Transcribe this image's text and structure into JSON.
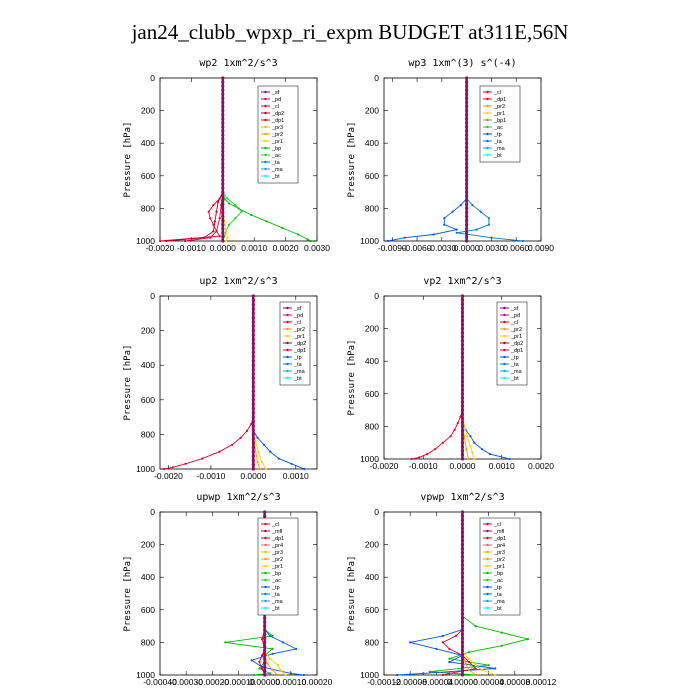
{
  "figure": {
    "title": "jan24_clubb_wpxp_ri_expm  BUDGET at311E,56N"
  },
  "colors": {
    "_sf": "#8b008b",
    "_pd": "#d0007a",
    "_cl": "#e8002a",
    "_dp1": "#e8002a",
    "_dp2": "#b8002a",
    "_dp4": "#d04050",
    "_mfl": "#a0007a",
    "_pr1": "#ffd000",
    "_pr2": "#ff9900",
    "_pr3": "#e8c000",
    "_pr4": "#ff6060",
    "_bp": "#00bb00",
    "_ac": "#22cc22",
    "_tp": "#0055ff",
    "_ta": "#0077cc",
    "_ma": "#00aaff",
    "_bt": "#00ffff"
  },
  "chart_data": [
    {
      "type": "line",
      "title": "wp2   1xm^2/s^3",
      "ylabel": "Pressure [hPa]",
      "xlim": [
        -0.002,
        0.003
      ],
      "ylim": [
        1000,
        0
      ],
      "xticks": [
        "-0.0020",
        "-0.0010",
        "0.0000",
        "0.0010",
        "0.0020",
        "0.0030"
      ],
      "xtick_values": [
        -0.002,
        -0.001,
        0,
        0.001,
        0.002,
        0.003
      ],
      "yticks": [
        "0",
        "200",
        "400",
        "600",
        "800",
        "1000"
      ],
      "legend": [
        "_sf",
        "_pd",
        "_cl",
        "_dp2",
        "_dp1",
        "_pr3",
        "_pr2",
        "_pr1",
        "_bp",
        "_ac",
        "_ta",
        "_ma",
        "_bt"
      ],
      "series": [
        {
          "name": "_bp",
          "p": [
            700,
            740,
            770,
            800,
            840,
            880,
            920,
            960,
            990,
            1000
          ],
          "v": [
            0,
            5e-05,
            0.0002,
            0.0005,
            0.0009,
            0.0014,
            0.0019,
            0.0024,
            0.0027,
            0.0028
          ]
        },
        {
          "name": "_ac",
          "p": [
            700,
            740,
            780,
            820,
            860,
            900,
            940,
            970,
            1000
          ],
          "v": [
            0,
            0.00015,
            0.0004,
            0.0006,
            0.0004,
            0.0002,
            0.0001,
            5e-05,
            0
          ]
        },
        {
          "name": "_dp1",
          "p": [
            700,
            740,
            780,
            820,
            860,
            900,
            940,
            970,
            1000
          ],
          "v": [
            0,
            -0.0001,
            -0.0003,
            -0.00045,
            -0.0004,
            -0.0003,
            -0.0002,
            -0.0001,
            -0.002
          ]
        },
        {
          "name": "_dp2",
          "p": [
            700,
            760,
            820,
            880,
            940,
            980,
            1000
          ],
          "v": [
            0,
            -0.00015,
            -0.0002,
            -0.00025,
            -0.0003,
            -0.0006,
            -0.0018
          ]
        },
        {
          "name": "_cl",
          "p": [
            700,
            780,
            860,
            940,
            980,
            1000
          ],
          "v": [
            0,
            -5e-05,
            -0.0001,
            -0.0002,
            -0.0004,
            -0.0012
          ]
        },
        {
          "name": "_pr1",
          "p": [
            800,
            880,
            940,
            980,
            1000
          ],
          "v": [
            0,
            5e-05,
            0.0001,
            0.00015,
            0.0001
          ]
        },
        {
          "name": "_pd",
          "p": [
            0,
            1000
          ],
          "v": [
            0,
            0
          ]
        },
        {
          "name": "_sf",
          "p": [
            0,
            1000
          ],
          "v": [
            0,
            0
          ]
        }
      ]
    },
    {
      "type": "line",
      "title": "wp3   1xm^(3) s^(-4)",
      "ylabel": "Pressure [hPa]",
      "xlim": [
        -0.01,
        0.009
      ],
      "ylim": [
        1000,
        0
      ],
      "xticks": [
        "-0.0090",
        "-0.0060",
        "-0.0030",
        "0.0000",
        "0.0030",
        "0.0060",
        "0.0090"
      ],
      "xtick_values": [
        -0.009,
        -0.006,
        -0.003,
        0,
        0.003,
        0.006,
        0.009
      ],
      "yticks": [
        "0",
        "200",
        "400",
        "600",
        "800",
        "1000"
      ],
      "legend": [
        "_cl",
        "_dp1",
        "_pr2",
        "_pr1",
        "_bp1",
        "_ac",
        "_tp",
        "_ta",
        "_ma",
        "_bt"
      ],
      "series": [
        {
          "name": "_tp",
          "p": [
            740,
            780,
            820,
            860,
            900,
            930,
            960,
            980,
            1000
          ],
          "v": [
            0,
            -0.0007,
            -0.0017,
            -0.0027,
            -0.0027,
            -0.0012,
            -0.004,
            -0.0075,
            -0.0095
          ]
        },
        {
          "name": "_ta",
          "p": [
            740,
            780,
            820,
            860,
            900,
            930,
            950,
            980,
            1000
          ],
          "v": [
            0,
            0.0007,
            0.0017,
            0.0027,
            0.0027,
            0.0012,
            -0.0012,
            0.003,
            0.0068
          ]
        },
        {
          "name": "_cl",
          "p": [
            0,
            1000
          ],
          "v": [
            0,
            0
          ]
        },
        {
          "name": "_dp1",
          "p": [
            0,
            1000
          ],
          "v": [
            0,
            0
          ]
        },
        {
          "name": "_pr1",
          "p": [
            0,
            1000
          ],
          "v": [
            0,
            0
          ]
        }
      ]
    },
    {
      "type": "line",
      "title": "up2   1xm^2/s^3",
      "ylabel": "Pressure [hPa]",
      "xlim": [
        -0.0022,
        0.0015
      ],
      "ylim": [
        1000,
        0
      ],
      "xticks": [
        "-0.0020",
        "-0.0010",
        "0.0000",
        "0.0010"
      ],
      "xtick_values": [
        -0.002,
        -0.001,
        0,
        0.001
      ],
      "yticks": [
        "0",
        "200",
        "400",
        "600",
        "800",
        "1000"
      ],
      "legend": [
        "_sf",
        "_pd",
        "_cl",
        "_pr2",
        "_pr1",
        "_dp2",
        "_dp1",
        "_tp",
        "_ta",
        "_ma",
        "_bt"
      ],
      "series": [
        {
          "name": "_dp1",
          "p": [
            700,
            740,
            780,
            820,
            860,
            900,
            940,
            970,
            990,
            1000
          ],
          "v": [
            0,
            -5e-05,
            -0.00015,
            -0.0003,
            -0.0005,
            -0.0008,
            -0.0012,
            -0.0016,
            -0.0019,
            -0.0021
          ]
        },
        {
          "name": "_tp",
          "p": [
            780,
            820,
            860,
            900,
            940,
            970,
            1000
          ],
          "v": [
            0,
            0.0001,
            0.00025,
            0.0004,
            0.0006,
            0.0009,
            0.0012
          ]
        },
        {
          "name": "_pr1",
          "p": [
            780,
            840,
            900,
            960,
            1000
          ],
          "v": [
            0,
            5e-05,
            0.00012,
            0.0002,
            0.0003
          ]
        },
        {
          "name": "_pr2",
          "p": [
            800,
            880,
            960,
            1000
          ],
          "v": [
            0,
            4e-05,
            0.0001,
            0.00015
          ]
        },
        {
          "name": "_cl",
          "p": [
            0,
            1000
          ],
          "v": [
            0,
            0
          ]
        },
        {
          "name": "_pd",
          "p": [
            0,
            1000
          ],
          "v": [
            0,
            0
          ]
        },
        {
          "name": "_sf",
          "p": [
            0,
            1000
          ],
          "v": [
            0,
            0
          ]
        }
      ]
    },
    {
      "type": "line",
      "title": "vp2   1xm^2/s^3",
      "ylabel": "Pressure [hPa]",
      "xlim": [
        -0.002,
        0.002
      ],
      "ylim": [
        1000,
        0
      ],
      "xticks": [
        "-0.0020",
        "-0.0010",
        "0.0000",
        "0.0010",
        "0.0020"
      ],
      "xtick_values": [
        -0.002,
        -0.001,
        0,
        0.001,
        0.002
      ],
      "yticks": [
        "0",
        "200",
        "400",
        "600",
        "800",
        "1000"
      ],
      "legend": [
        "_sf",
        "_pd",
        "_cl",
        "_pr2",
        "_pr1",
        "_dp2",
        "_dp1",
        "_tp",
        "_ta",
        "_ma",
        "_bt"
      ],
      "series": [
        {
          "name": "_dp1",
          "p": [
            700,
            740,
            780,
            820,
            860,
            900,
            940,
            970,
            990,
            1000
          ],
          "v": [
            0,
            -5e-05,
            -0.00012,
            -0.0002,
            -0.0003,
            -0.0005,
            -0.0007,
            -0.0009,
            -0.0011,
            -0.0013
          ]
        },
        {
          "name": "_tp",
          "p": [
            780,
            820,
            860,
            900,
            940,
            970,
            1000
          ],
          "v": [
            0,
            8e-05,
            0.0002,
            0.0003,
            0.0005,
            0.0007,
            0.0012
          ]
        },
        {
          "name": "_pr1",
          "p": [
            740,
            800,
            860,
            920,
            960,
            1000
          ],
          "v": [
            0,
            5e-05,
            0.00012,
            0.0002,
            0.00025,
            0.0003
          ]
        },
        {
          "name": "_pr2",
          "p": [
            780,
            860,
            940,
            1000
          ],
          "v": [
            0,
            4e-05,
            0.0001,
            0.00015
          ]
        },
        {
          "name": "_cl",
          "p": [
            0,
            1000
          ],
          "v": [
            0,
            0
          ]
        },
        {
          "name": "_pd",
          "p": [
            0,
            1000
          ],
          "v": [
            0,
            0
          ]
        },
        {
          "name": "_sf",
          "p": [
            0,
            1000
          ],
          "v": [
            0,
            0
          ]
        }
      ]
    },
    {
      "type": "line",
      "title": "upwp   1xm^2/s^3",
      "ylabel": "Pressure [hPa]",
      "xlim": [
        -0.0004,
        0.0002
      ],
      "ylim": [
        1000,
        0
      ],
      "xticks": [
        "-0.00040",
        "-0.00030",
        "-0.00020",
        "-0.00010",
        "0.00000",
        "0.00010",
        "0.00020"
      ],
      "xtick_values": [
        -0.0004,
        -0.0003,
        -0.0002,
        -0.0001,
        0,
        0.0001,
        0.0002
      ],
      "yticks": [
        "0",
        "200",
        "400",
        "600",
        "800",
        "1000"
      ],
      "legend": [
        "_cl",
        "_mfl",
        "_dp1",
        "_pr4",
        "_pr3",
        "_pr2",
        "_pr1",
        "_bp",
        "_ac",
        "_tp",
        "_ta",
        "_ma",
        "_bt"
      ],
      "series": [
        {
          "name": "_bp",
          "p": [
            720,
            760,
            800,
            840,
            880,
            920,
            960,
            990,
            1000
          ],
          "v": [
            0,
            3e-05,
            -0.00015,
            3e-05,
            0,
            0,
            -2e-05,
            2e-05,
            -4e-05
          ]
        },
        {
          "name": "_tp",
          "p": [
            720,
            760,
            800,
            840,
            870,
            910,
            950,
            990,
            1000
          ],
          "v": [
            0,
            2e-05,
            7e-05,
            0.00012,
            3e-05,
            -5e-05,
            -1e-05,
            0.0001,
            0.00015
          ]
        },
        {
          "name": "_pr1",
          "p": [
            860,
            900,
            940,
            970,
            1000
          ],
          "v": [
            0,
            2e-05,
            5e-05,
            6e-05,
            8e-05
          ]
        },
        {
          "name": "_pr2",
          "p": [
            880,
            930,
            970,
            1000
          ],
          "v": [
            0,
            1e-05,
            3e-05,
            5e-05
          ]
        },
        {
          "name": "_dp1",
          "p": [
            720,
            780,
            840,
            880,
            920,
            960,
            1000
          ],
          "v": [
            0,
            -1e-05,
            0,
            -1e-05,
            -2e-05,
            -1e-05,
            0
          ]
        },
        {
          "name": "_cl",
          "p": [
            0,
            1000
          ],
          "v": [
            0,
            0
          ]
        },
        {
          "name": "_mfl",
          "p": [
            0,
            1000
          ],
          "v": [
            0,
            0
          ]
        }
      ]
    },
    {
      "type": "line",
      "title": "vpwp   1xm^2/s^3",
      "ylabel": "Pressure [hPa]",
      "xlim": [
        -0.00012,
        0.00012
      ],
      "ylim": [
        1000,
        0
      ],
      "xticks": [
        "-0.00012",
        "-0.00008",
        "-0.00004",
        "0.00000",
        "0.00004",
        "0.00008",
        "0.00012"
      ],
      "xtick_values": [
        -0.00012,
        -8e-05,
        -4e-05,
        0,
        4e-05,
        8e-05,
        0.00012
      ],
      "yticks": [
        "0",
        "200",
        "400",
        "600",
        "800",
        "1000"
      ],
      "legend": [
        "_cl",
        "_mfl",
        "_dp1",
        "_pr4",
        "_pr3",
        "_pr2",
        "_pr1",
        "_bp",
        "_ac",
        "_tp",
        "_ta",
        "_ma",
        "_bt"
      ],
      "series": [
        {
          "name": "_bp",
          "p": [
            640,
            700,
            740,
            780,
            820,
            860,
            900,
            940,
            980,
            1000
          ],
          "v": [
            0,
            2e-05,
            6e-05,
            0.0001,
            6e-05,
            1e-05,
            -2e-05,
            4e-05,
            -5e-05,
            2e-05
          ]
        },
        {
          "name": "_tp",
          "p": [
            720,
            760,
            800,
            840,
            880,
            920,
            960,
            990,
            1000
          ],
          "v": [
            0,
            -3e-05,
            -8e-05,
            -4e-05,
            0,
            -2e-05,
            5e-05,
            -6e-05,
            -0.0001
          ]
        },
        {
          "name": "_dp1",
          "p": [
            720,
            760,
            800,
            840,
            880,
            920,
            960,
            990,
            1000
          ],
          "v": [
            0,
            -1e-05,
            -3e-05,
            -2e-05,
            0,
            1e-05,
            2e-05,
            -2e-05,
            -3e-05
          ]
        },
        {
          "name": "_pr1",
          "p": [
            860,
            900,
            940,
            970,
            1000
          ],
          "v": [
            0,
            1e-05,
            2e-05,
            3e-05,
            5e-05
          ]
        },
        {
          "name": "_pr2",
          "p": [
            880,
            930,
            970,
            1000
          ],
          "v": [
            0,
            5e-06,
            1e-05,
            2e-05
          ]
        },
        {
          "name": "_cl",
          "p": [
            0,
            1000
          ],
          "v": [
            0,
            0
          ]
        },
        {
          "name": "_mfl",
          "p": [
            0,
            1000
          ],
          "v": [
            0,
            0
          ]
        }
      ]
    }
  ]
}
